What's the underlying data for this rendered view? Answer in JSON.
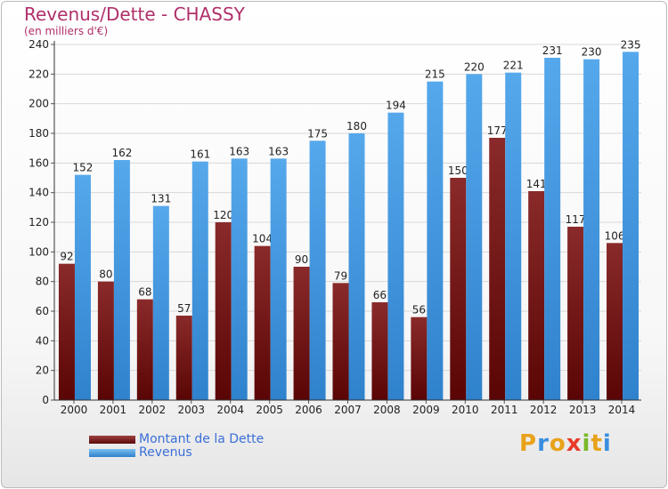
{
  "header": {
    "title": "Revenus/Dette - CHASSY",
    "subtitle": "(en milliers d'€)"
  },
  "logo": {
    "letters": [
      "P",
      "r",
      "o",
      "x",
      "i",
      "t",
      "i"
    ],
    "colors": [
      "#e8a21a",
      "#3a8ee0",
      "#e8a21a",
      "#e83a2a",
      "#7ab82a",
      "#e8a21a",
      "#3a8ee0"
    ]
  },
  "legend": {
    "items": [
      {
        "label": "Montant de la Dette",
        "color": "#7a1515"
      },
      {
        "label": "Revenus",
        "color": "#4a9de0"
      }
    ]
  },
  "chart_data": {
    "type": "bar",
    "title": "Revenus/Dette - CHASSY",
    "subtitle": "(en milliers d'€)",
    "categories": [
      "2000",
      "2001",
      "2002",
      "2003",
      "2004",
      "2005",
      "2006",
      "2007",
      "2008",
      "2009",
      "2010",
      "2011",
      "2012",
      "2013",
      "2014"
    ],
    "series": [
      {
        "name": "Montant de la Dette",
        "color": "#7a1515",
        "values": [
          92,
          80,
          68,
          57,
          120,
          104,
          90,
          79,
          66,
          56,
          150,
          177,
          141,
          117,
          106
        ]
      },
      {
        "name": "Revenus",
        "color": "#4a9de0",
        "values": [
          152,
          162,
          131,
          161,
          163,
          163,
          175,
          180,
          194,
          215,
          220,
          221,
          231,
          230,
          235
        ]
      }
    ],
    "ylim": [
      0,
      240
    ],
    "yticks": [
      0,
      20,
      40,
      60,
      80,
      100,
      120,
      140,
      160,
      180,
      200,
      220,
      240
    ],
    "grid": true,
    "legend_position": "bottom-left"
  }
}
